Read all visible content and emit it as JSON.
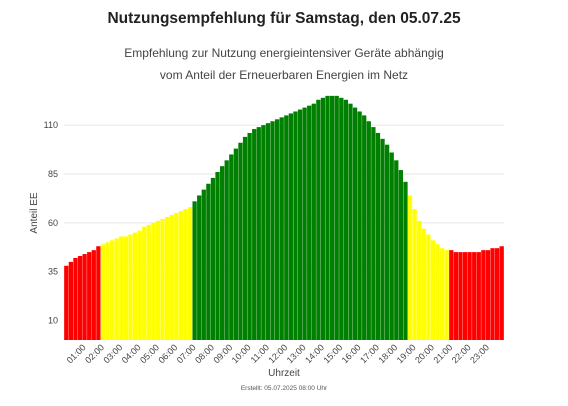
{
  "header": {
    "title": "Nutzungsempfehlung für Samstag, den 05.07.25",
    "subtitle_line1": "Empfehlung zur Nutzung energieintensiver Geräte abhängig",
    "subtitle_line2": "vom Anteil der Erneuerbaren Energien im Netz"
  },
  "footer": {
    "text": "Erstellt: 05.07.2025 08:00 Uhr"
  },
  "colors": {
    "red": "#ff0000",
    "yellow": "#ffff00",
    "green": "#008000",
    "grid": "#e6e6e6"
  },
  "chart_data": {
    "type": "bar",
    "xlabel": "Uhrzeit",
    "ylabel": "Anteil EE",
    "ylim": [
      0,
      128
    ],
    "yticks": [
      10,
      35,
      60,
      85,
      110
    ],
    "grid": true,
    "x_tick_labels": [
      "01:00",
      "02:00",
      "03:00",
      "04:00",
      "05:00",
      "06:00",
      "07:00",
      "08:00",
      "09:00",
      "10:00",
      "11:00",
      "12:00",
      "13:00",
      "14:00",
      "15:00",
      "16:00",
      "17:00",
      "18:00",
      "19:00",
      "20:00",
      "21:00",
      "22:00",
      "23:00"
    ],
    "x_tick_start_index": 4,
    "x_tick_step": 4,
    "values": [
      38,
      40,
      42,
      43,
      44,
      45,
      46,
      48,
      49,
      50,
      51,
      52,
      53,
      53,
      54,
      55,
      56,
      58,
      59,
      60,
      61,
      62,
      63,
      64,
      65,
      66,
      67,
      68,
      71,
      74,
      77,
      80,
      83,
      86,
      89,
      92,
      95,
      98,
      101,
      104,
      106,
      108,
      109,
      110,
      111,
      112,
      113,
      114,
      115,
      116,
      117,
      118,
      119,
      120,
      121,
      123,
      124,
      125,
      125,
      125,
      124,
      123,
      121,
      119,
      117,
      115,
      112,
      109,
      106,
      103,
      100,
      96,
      92,
      87,
      81,
      74,
      67,
      61,
      57,
      54,
      51,
      49,
      47,
      46,
      46,
      45,
      45,
      45,
      45,
      45,
      45,
      46,
      46,
      47,
      47,
      48
    ],
    "levels": [
      "red",
      "red",
      "red",
      "red",
      "red",
      "red",
      "red",
      "red",
      "yellow",
      "yellow",
      "yellow",
      "yellow",
      "yellow",
      "yellow",
      "yellow",
      "yellow",
      "yellow",
      "yellow",
      "yellow",
      "yellow",
      "yellow",
      "yellow",
      "yellow",
      "yellow",
      "yellow",
      "yellow",
      "yellow",
      "yellow",
      "green",
      "green",
      "green",
      "green",
      "green",
      "green",
      "green",
      "green",
      "green",
      "green",
      "green",
      "green",
      "green",
      "green",
      "green",
      "green",
      "green",
      "green",
      "green",
      "green",
      "green",
      "green",
      "green",
      "green",
      "green",
      "green",
      "green",
      "green",
      "green",
      "green",
      "green",
      "green",
      "green",
      "green",
      "green",
      "green",
      "green",
      "green",
      "green",
      "green",
      "green",
      "green",
      "green",
      "green",
      "green",
      "green",
      "green",
      "yellow",
      "yellow",
      "yellow",
      "yellow",
      "yellow",
      "yellow",
      "yellow",
      "yellow",
      "yellow",
      "red",
      "red",
      "red",
      "red",
      "red",
      "red",
      "red",
      "red",
      "red",
      "red",
      "red",
      "red",
      "red",
      "red"
    ]
  }
}
